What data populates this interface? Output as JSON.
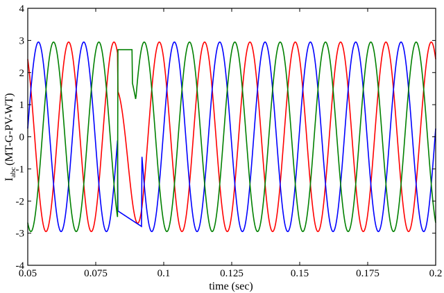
{
  "chart_data": {
    "type": "line",
    "xlabel": "time (sec)",
    "ylabel_main": "I",
    "ylabel_sub": "abc",
    "ylabel_rest": "(MT-G-PV-WT)",
    "xlim": [
      0.05,
      0.2
    ],
    "ylim": [
      -4,
      4
    ],
    "x_ticks": [
      "0.05",
      "0.075",
      "0.1",
      "0.125",
      "0.15",
      "0.175",
      "0.2"
    ],
    "x_tick_values": [
      0.05,
      0.075,
      0.1,
      0.125,
      0.15,
      0.175,
      0.2
    ],
    "y_ticks": [
      "4",
      "3",
      "2",
      "1",
      "0",
      "-1",
      "-2",
      "-3",
      "-4"
    ],
    "y_tick_values": [
      4,
      3,
      2,
      1,
      0,
      -1,
      -2,
      -3,
      -4
    ],
    "grid": false,
    "series_model": {
      "amplitude": 2.95,
      "frequency_hz": 60,
      "disturbance": {
        "start": 0.083,
        "end": 0.092
      }
    },
    "series": [
      {
        "color": "#ff0000",
        "phase_deg": 125
      },
      {
        "color": "#0000ff",
        "phase_deg": 5
      },
      {
        "color": "#008000",
        "phase_deg": 245
      }
    ]
  }
}
